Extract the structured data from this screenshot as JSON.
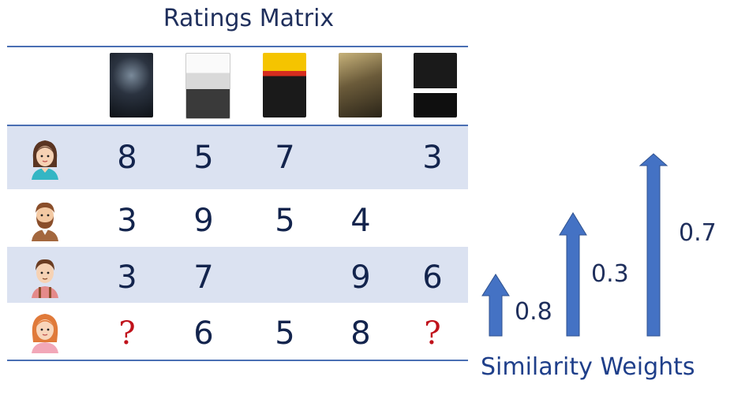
{
  "title": "Ratings Matrix",
  "movies": [
    "the-dark-knight-poster",
    "one-flew-over-the-cuckoos-nest-poster",
    "pulp-fiction-poster",
    "lord-of-the-rings-poster",
    "the-godfather-poster"
  ],
  "users": [
    {
      "avatar": "woman-avatar-icon",
      "ratings": [
        "8",
        "5",
        "7",
        "",
        "3"
      ]
    },
    {
      "avatar": "bearded-man-avatar-icon",
      "ratings": [
        "3",
        "9",
        "5",
        "4",
        ""
      ]
    },
    {
      "avatar": "man-avatar-icon",
      "ratings": [
        "3",
        "7",
        "",
        "9",
        "6"
      ]
    },
    {
      "avatar": "redhead-woman-avatar-icon",
      "ratings": [
        "?",
        "6",
        "5",
        "8",
        "?"
      ]
    }
  ],
  "weights": {
    "w1": "0.8",
    "w2": "0.3",
    "w3": "0.7"
  },
  "weights_values": [
    0.8,
    0.3,
    0.7
  ],
  "caption": "Similarity Weights",
  "colors": {
    "band": "#dbe2f1",
    "rule": "#4a6fb3",
    "arrow": "#4472c4",
    "question": "#c0121b",
    "text": "#13244d"
  }
}
